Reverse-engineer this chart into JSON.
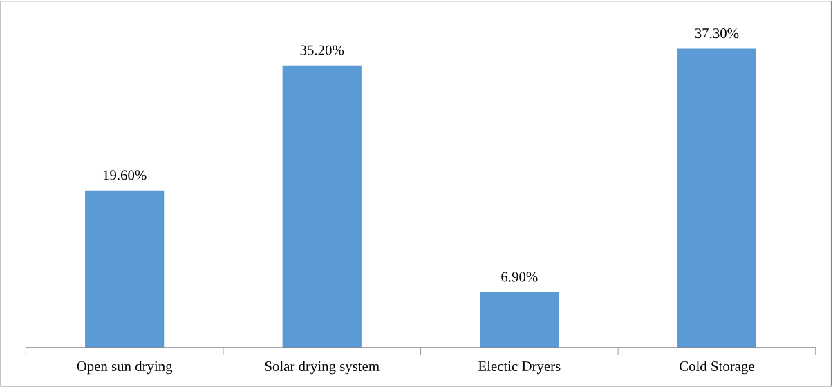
{
  "chart_data": {
    "type": "bar",
    "categories": [
      "Open sun drying",
      "Solar drying system",
      "Electic Dryers",
      "Cold Storage"
    ],
    "values": [
      19.6,
      35.2,
      6.9,
      37.3
    ],
    "value_labels": [
      "19.60%",
      "35.20%",
      "6.90%",
      "37.30%"
    ],
    "color": "#5b9bd5",
    "grid": false,
    "legend": false
  }
}
